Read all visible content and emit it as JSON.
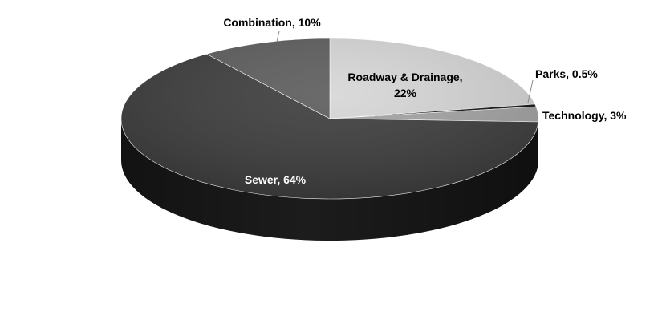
{
  "chart_data": {
    "type": "pie",
    "title": "",
    "categories": [
      "Roadway & Drainage",
      "Parks",
      "Technology",
      "Sewer",
      "Combination"
    ],
    "values": [
      22,
      0.5,
      3,
      64,
      10
    ],
    "labels": [
      [
        "Roadway & Drainage,",
        "22%"
      ],
      [
        "Parks, 0.5%"
      ],
      [
        "Technology, 3%"
      ],
      [
        "Sewer, 64%"
      ],
      [
        "Combination, 10%"
      ]
    ],
    "colors": [
      "#d6d6d6",
      "#111111",
      "#a3a3a3",
      "#3a3a3a",
      "#5a5a5a"
    ],
    "side_colors": [
      "#9a9a9a",
      "#0a0a0a",
      "#747474",
      "#1c1c1c",
      "#333333"
    ],
    "label_colors": [
      "#000000",
      "#000000",
      "#000000",
      "#ffffff",
      "#000000"
    ],
    "start_angle_deg": 90,
    "direction": "clockwise",
    "style": "3d",
    "legend": "none"
  }
}
